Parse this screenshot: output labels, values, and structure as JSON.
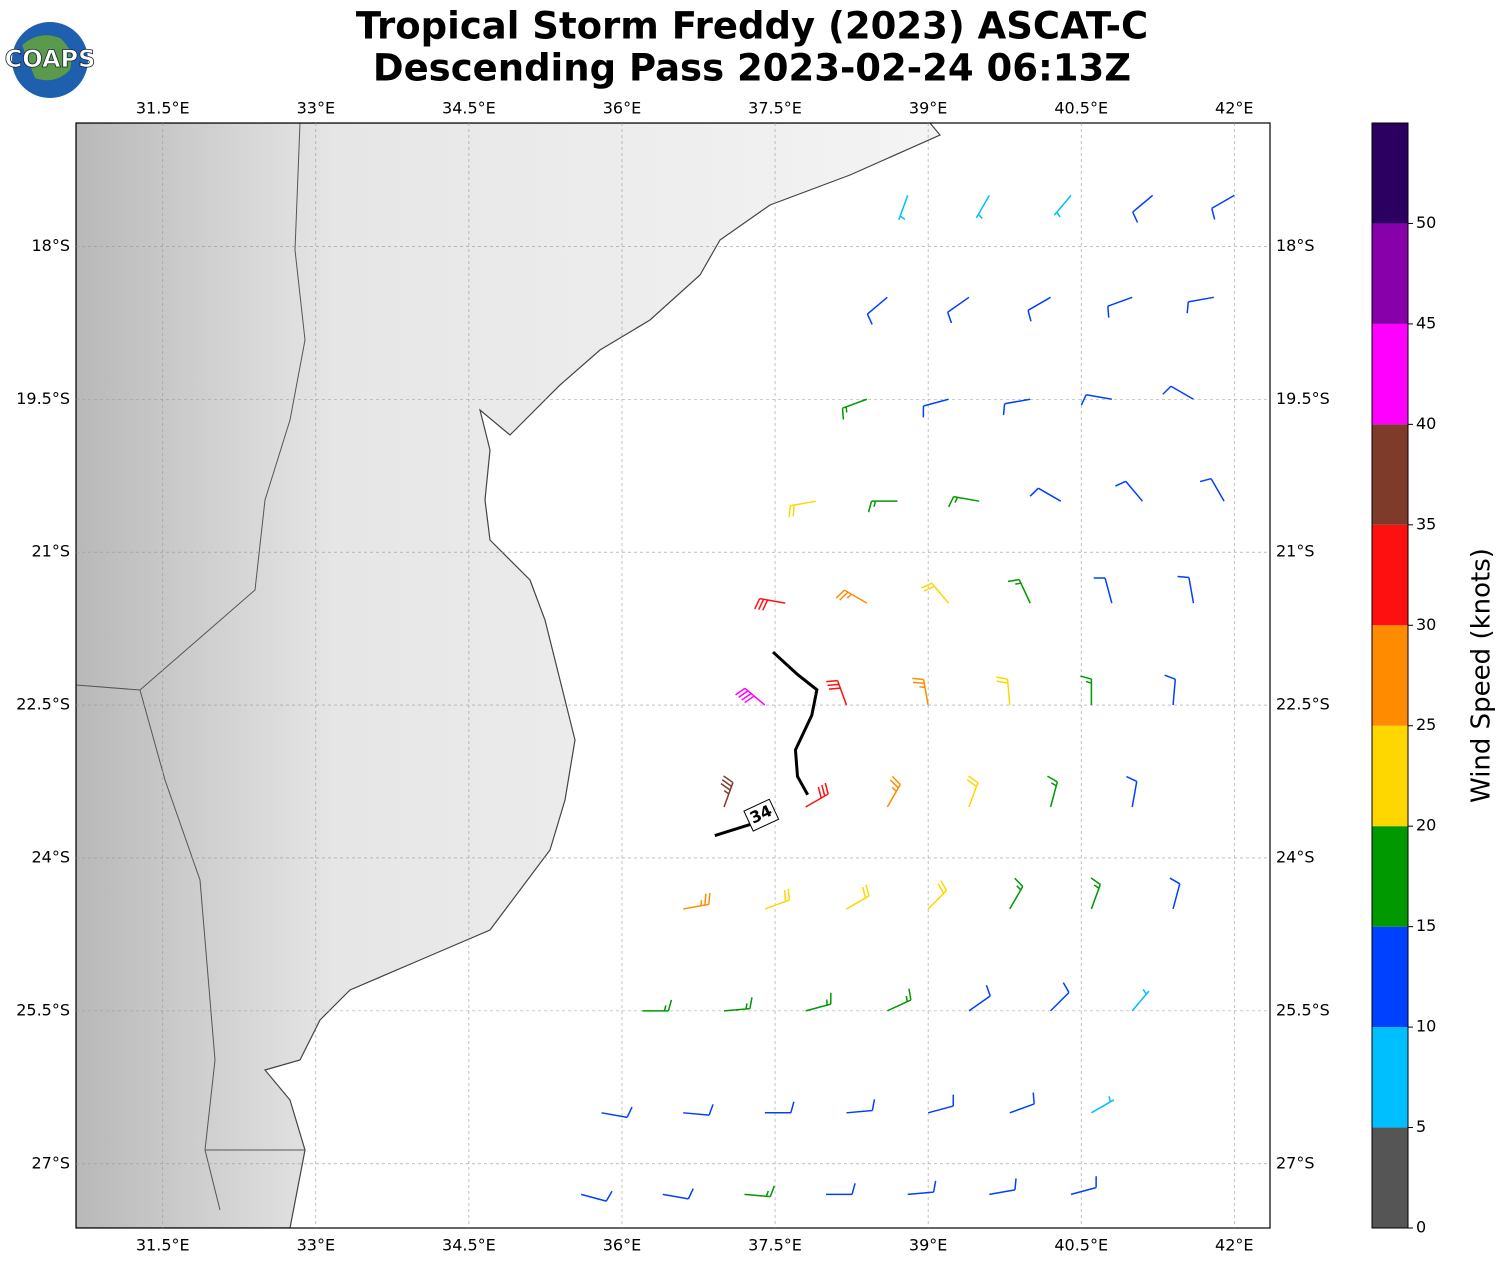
{
  "chart_data": {
    "type": "barb",
    "logo": "COAPS",
    "title": "Tropical Storm Freddy (2023) ASCAT-C",
    "subtitle": "Descending Pass 2023-02-24 06:13Z",
    "xlim": [
      30.65,
      42.35
    ],
    "ylim": [
      -27.63,
      -16.79
    ],
    "xticks": [
      {
        "value": 31.5,
        "label": "31.5°E"
      },
      {
        "value": 33,
        "label": "33°E"
      },
      {
        "value": 34.5,
        "label": "34.5°E"
      },
      {
        "value": 36,
        "label": "36°E"
      },
      {
        "value": 37.5,
        "label": "37.5°E"
      },
      {
        "value": 39,
        "label": "39°E"
      },
      {
        "value": 40.5,
        "label": "40.5°E"
      },
      {
        "value": 42,
        "label": "42°E"
      }
    ],
    "yticks": [
      {
        "value": -18,
        "label": "18°S"
      },
      {
        "value": -19.5,
        "label": "19.5°S"
      },
      {
        "value": -21,
        "label": "21°S"
      },
      {
        "value": -22.5,
        "label": "22.5°S"
      },
      {
        "value": -24,
        "label": "24°S"
      },
      {
        "value": -25.5,
        "label": "25.5°S"
      },
      {
        "value": -27,
        "label": "27°S"
      }
    ],
    "grid": true,
    "barbs": {
      "lon": [
        38.8,
        39.6,
        40.4,
        41.2,
        42.0,
        38.6,
        39.4,
        40.2,
        41.0,
        41.8,
        38.4,
        39.2,
        40.0,
        40.8,
        41.6,
        37.9,
        38.7,
        39.5,
        40.3,
        41.1,
        41.9,
        37.6,
        38.4,
        39.2,
        40.0,
        40.8,
        41.6,
        37.4,
        38.2,
        39.0,
        39.8,
        40.6,
        41.4,
        37.0,
        37.8,
        38.6,
        39.4,
        40.2,
        41.0,
        36.6,
        37.4,
        38.2,
        39.0,
        39.8,
        40.6,
        41.4,
        36.2,
        37.0,
        37.8,
        38.6,
        39.4,
        40.2,
        41.0,
        35.8,
        36.6,
        37.4,
        38.2,
        39.0,
        39.8,
        40.6,
        35.6,
        36.4,
        37.2,
        38.0,
        38.8,
        39.6,
        40.4
      ],
      "lat": [
        -17.5,
        -17.5,
        -17.5,
        -17.5,
        -17.5,
        -18.5,
        -18.5,
        -18.5,
        -18.5,
        -18.5,
        -19.5,
        -19.5,
        -19.5,
        -19.5,
        -19.5,
        -20.5,
        -20.5,
        -20.5,
        -20.5,
        -20.5,
        -20.5,
        -21.5,
        -21.5,
        -21.5,
        -21.5,
        -21.5,
        -21.5,
        -22.5,
        -22.5,
        -22.5,
        -22.5,
        -22.5,
        -22.5,
        -23.5,
        -23.5,
        -23.5,
        -23.5,
        -23.5,
        -23.5,
        -24.5,
        -24.5,
        -24.5,
        -24.5,
        -24.5,
        -24.5,
        -24.5,
        -25.5,
        -25.5,
        -25.5,
        -25.5,
        -25.5,
        -25.5,
        -25.5,
        -26.5,
        -26.5,
        -26.5,
        -26.5,
        -26.5,
        -26.5,
        -26.5,
        -27.3,
        -27.3,
        -27.3,
        -27.3,
        -27.3,
        -27.3,
        -27.3
      ],
      "speed": [
        8,
        8,
        9,
        11,
        13,
        12,
        12,
        12,
        13,
        13,
        16,
        14,
        13,
        12,
        11,
        22,
        18,
        15,
        13,
        11,
        12,
        33,
        28,
        22,
        17,
        13,
        12,
        42,
        33,
        26,
        20,
        16,
        13,
        37,
        31,
        26,
        22,
        18,
        14,
        27,
        24,
        22,
        21,
        18,
        15,
        12,
        17,
        17,
        17,
        16,
        14,
        12,
        9,
        13,
        13,
        13,
        12,
        12,
        10,
        9,
        12,
        12,
        15,
        13,
        12,
        11,
        10
      ],
      "direction": [
        200,
        210,
        220,
        230,
        240,
        230,
        235,
        240,
        250,
        260,
        250,
        255,
        260,
        280,
        300,
        260,
        270,
        280,
        300,
        320,
        330,
        280,
        300,
        320,
        335,
        345,
        350,
        310,
        340,
        350,
        355,
        0,
        5,
        20,
        60,
        30,
        20,
        15,
        10,
        80,
        70,
        60,
        45,
        30,
        20,
        15,
        90,
        85,
        75,
        65,
        55,
        45,
        40,
        100,
        95,
        90,
        85,
        75,
        70,
        60,
        105,
        100,
        95,
        90,
        85,
        80,
        75
      ]
    },
    "contour": {
      "level": 34,
      "lon": [
        37.48,
        37.72,
        37.91,
        37.86,
        37.7,
        37.72,
        37.82,
        null,
        36.91,
        37.45
      ],
      "lat": [
        -21.98,
        -22.2,
        -22.35,
        -22.6,
        -22.94,
        -23.2,
        -23.38,
        null,
        -23.78,
        -23.61
      ]
    },
    "colorbar": {
      "label": "Wind Speed (knots)",
      "bounds": [
        0,
        5,
        10,
        15,
        20,
        25,
        30,
        35,
        40,
        45,
        50,
        55
      ],
      "colors": [
        "#555555",
        "#00bfff",
        "#0040ff",
        "#009900",
        "#ffd700",
        "#ff8c00",
        "#ff1010",
        "#7f3b2a",
        "#ff00ff",
        "#8800aa",
        "#2b0060"
      ],
      "ticks": [
        0,
        5,
        10,
        15,
        20,
        25,
        30,
        35,
        40,
        45,
        50
      ]
    }
  }
}
